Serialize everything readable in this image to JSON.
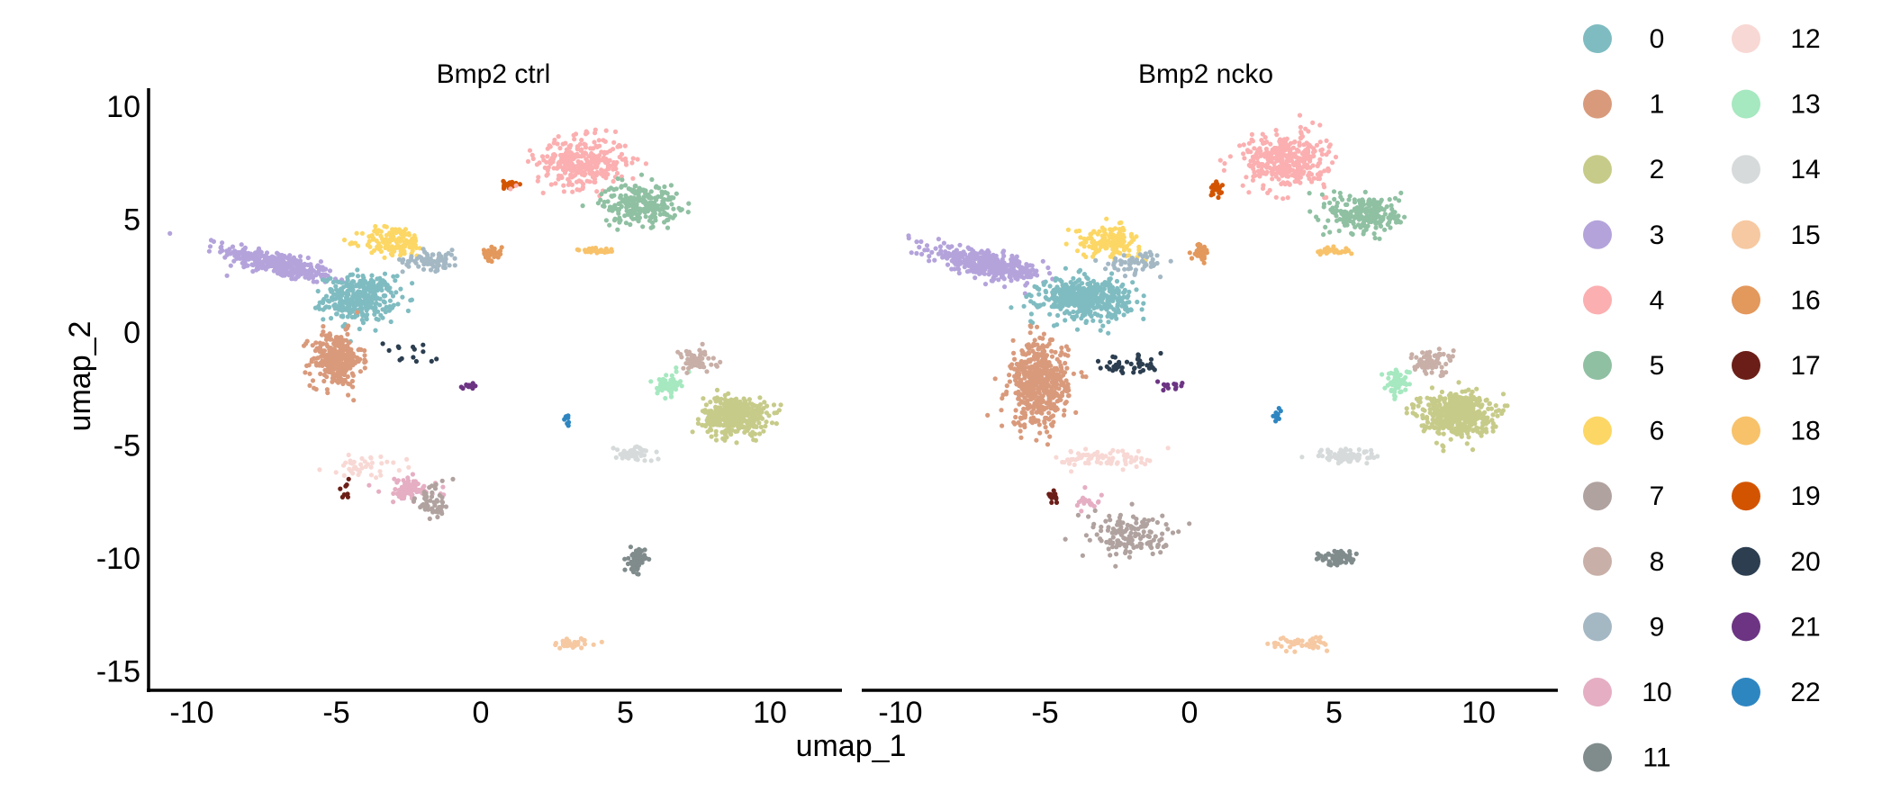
{
  "chart_data": {
    "type": "scatter",
    "subtype": "umap-facet",
    "xlabel": "umap_1",
    "ylabel": "umap_2",
    "xlim": [
      -11,
      12
    ],
    "ylim": [
      -15.5,
      11.5
    ],
    "xticks": [
      -10,
      -5,
      0,
      5,
      10
    ],
    "yticks": [
      10,
      5,
      0,
      -5,
      -10,
      -15
    ],
    "grid": false,
    "legend_position": "right",
    "legend_columns": 2,
    "legend": [
      {
        "label": "0",
        "color": "#7FBCC1"
      },
      {
        "label": "1",
        "color": "#D99A7C"
      },
      {
        "label": "2",
        "color": "#C7CB89"
      },
      {
        "label": "3",
        "color": "#B4A3DB"
      },
      {
        "label": "4",
        "color": "#FBAFB0"
      },
      {
        "label": "5",
        "color": "#8FC0A2"
      },
      {
        "label": "6",
        "color": "#FCD765"
      },
      {
        "label": "7",
        "color": "#B0A29F"
      },
      {
        "label": "8",
        "color": "#C8AFA7"
      },
      {
        "label": "9",
        "color": "#A4B8C4"
      },
      {
        "label": "10",
        "color": "#E5AEC3"
      },
      {
        "label": "11",
        "color": "#808B8C"
      },
      {
        "label": "12",
        "color": "#F8D8D4"
      },
      {
        "label": "13",
        "color": "#A6E8C0"
      },
      {
        "label": "14",
        "color": "#D6DADA"
      },
      {
        "label": "15",
        "color": "#F6C9A2"
      },
      {
        "label": "16",
        "color": "#E3985C"
      },
      {
        "label": "17",
        "color": "#6B1E17"
      },
      {
        "label": "18",
        "color": "#F8C26A"
      },
      {
        "label": "19",
        "color": "#D35400"
      },
      {
        "label": "20",
        "color": "#2C3E50"
      },
      {
        "label": "21",
        "color": "#6C3483"
      },
      {
        "label": "22",
        "color": "#2E86C1"
      }
    ],
    "panels": [
      {
        "title": "Bmp2  ctrl",
        "clusters": [
          {
            "id": "3",
            "cx": -7.0,
            "cy": 3.0,
            "sx": 1.8,
            "sy": 0.45,
            "n": 340,
            "rot": -0.32
          },
          {
            "id": "0",
            "cx": -4.2,
            "cy": 1.5,
            "sx": 1.1,
            "sy": 0.9,
            "n": 340
          },
          {
            "id": "1",
            "cx": -5.0,
            "cy": -1.2,
            "sx": 0.8,
            "sy": 1.1,
            "n": 290
          },
          {
            "id": "6",
            "cx": -3.0,
            "cy": 4.0,
            "sx": 1.0,
            "sy": 0.6,
            "n": 150
          },
          {
            "id": "9",
            "cx": -1.7,
            "cy": 3.2,
            "sx": 0.9,
            "sy": 0.4,
            "n": 80
          },
          {
            "id": "16",
            "cx": 0.4,
            "cy": 3.5,
            "sx": 0.3,
            "sy": 0.3,
            "n": 35
          },
          {
            "id": "19",
            "cx": 1.0,
            "cy": 6.5,
            "sx": 0.2,
            "sy": 0.2,
            "n": 22
          },
          {
            "id": "4",
            "cx": 3.5,
            "cy": 7.5,
            "sx": 1.4,
            "sy": 1.0,
            "n": 320
          },
          {
            "id": "5",
            "cx": 5.5,
            "cy": 5.7,
            "sx": 1.2,
            "sy": 0.8,
            "n": 240
          },
          {
            "id": "18",
            "cx": 4.0,
            "cy": 3.6,
            "sx": 0.6,
            "sy": 0.15,
            "n": 35
          },
          {
            "id": "2",
            "cx": 8.8,
            "cy": -3.7,
            "sx": 1.0,
            "sy": 0.75,
            "n": 420
          },
          {
            "id": "13",
            "cx": 6.5,
            "cy": -2.3,
            "sx": 0.35,
            "sy": 0.45,
            "n": 60
          },
          {
            "id": "8",
            "cx": 7.4,
            "cy": -1.3,
            "sx": 0.7,
            "sy": 0.5,
            "n": 60
          },
          {
            "id": "14",
            "cx": 5.3,
            "cy": -5.4,
            "sx": 0.6,
            "sy": 0.3,
            "n": 50
          },
          {
            "id": "11",
            "cx": 5.4,
            "cy": -10.1,
            "sx": 0.25,
            "sy": 0.45,
            "n": 70
          },
          {
            "id": "15",
            "cx": 3.2,
            "cy": -13.8,
            "sx": 0.8,
            "sy": 0.2,
            "n": 35
          },
          {
            "id": "22",
            "cx": 3.0,
            "cy": -3.8,
            "sx": 0.08,
            "sy": 0.3,
            "n": 10
          },
          {
            "id": "21",
            "cx": -0.5,
            "cy": -2.4,
            "sx": 0.4,
            "sy": 0.12,
            "n": 14
          },
          {
            "id": "20",
            "cx": -2.5,
            "cy": -1.0,
            "sx": 0.8,
            "sy": 0.5,
            "n": 14
          },
          {
            "id": "12",
            "cx": -4.0,
            "cy": -5.9,
            "sx": 1.3,
            "sy": 0.4,
            "n": 40
          },
          {
            "id": "10",
            "cx": -2.5,
            "cy": -7.0,
            "sx": 0.9,
            "sy": 0.5,
            "n": 80
          },
          {
            "id": "7",
            "cx": -1.6,
            "cy": -7.5,
            "sx": 0.6,
            "sy": 0.8,
            "n": 50
          },
          {
            "id": "17",
            "cx": -4.6,
            "cy": -7.0,
            "sx": 0.3,
            "sy": 0.35,
            "n": 8
          }
        ]
      },
      {
        "title": "Bmp2  ncko",
        "clusters": [
          {
            "id": "3",
            "cx": -7.0,
            "cy": 3.0,
            "sx": 1.8,
            "sy": 0.45,
            "n": 420,
            "rot": -0.3
          },
          {
            "id": "0",
            "cx": -3.6,
            "cy": 1.5,
            "sx": 1.4,
            "sy": 0.8,
            "n": 460
          },
          {
            "id": "1",
            "cx": -5.2,
            "cy": -2.3,
            "sx": 0.9,
            "sy": 1.7,
            "n": 520
          },
          {
            "id": "6",
            "cx": -2.8,
            "cy": 4.0,
            "sx": 1.0,
            "sy": 0.6,
            "n": 150
          },
          {
            "id": "9",
            "cx": -1.8,
            "cy": 3.1,
            "sx": 0.9,
            "sy": 0.4,
            "n": 60
          },
          {
            "id": "16",
            "cx": 0.4,
            "cy": 3.6,
            "sx": 0.3,
            "sy": 0.35,
            "n": 35
          },
          {
            "id": "19",
            "cx": 0.9,
            "cy": 6.3,
            "sx": 0.2,
            "sy": 0.25,
            "n": 22
          },
          {
            "id": "4",
            "cx": 3.3,
            "cy": 7.6,
            "sx": 1.3,
            "sy": 1.1,
            "n": 360
          },
          {
            "id": "5",
            "cx": 6.1,
            "cy": 5.2,
            "sx": 1.1,
            "sy": 0.8,
            "n": 240
          },
          {
            "id": "18",
            "cx": 5.0,
            "cy": 3.6,
            "sx": 0.6,
            "sy": 0.15,
            "n": 35
          },
          {
            "id": "2",
            "cx": 9.2,
            "cy": -3.6,
            "sx": 1.1,
            "sy": 0.85,
            "n": 480
          },
          {
            "id": "13",
            "cx": 7.2,
            "cy": -2.2,
            "sx": 0.4,
            "sy": 0.5,
            "n": 60
          },
          {
            "id": "8",
            "cx": 8.3,
            "cy": -1.3,
            "sx": 0.7,
            "sy": 0.5,
            "n": 70
          },
          {
            "id": "14",
            "cx": 5.5,
            "cy": -5.5,
            "sx": 1.0,
            "sy": 0.3,
            "n": 70
          },
          {
            "id": "11",
            "cx": 5.1,
            "cy": -10.0,
            "sx": 0.6,
            "sy": 0.3,
            "n": 60
          },
          {
            "id": "15",
            "cx": 3.8,
            "cy": -13.8,
            "sx": 0.9,
            "sy": 0.3,
            "n": 50
          },
          {
            "id": "22",
            "cx": 3.0,
            "cy": -3.7,
            "sx": 0.12,
            "sy": 0.25,
            "n": 10
          },
          {
            "id": "21",
            "cx": -0.7,
            "cy": -2.4,
            "sx": 0.5,
            "sy": 0.15,
            "n": 14
          },
          {
            "id": "20",
            "cx": -2.0,
            "cy": -1.4,
            "sx": 1.0,
            "sy": 0.5,
            "n": 40
          },
          {
            "id": "12",
            "cx": -2.8,
            "cy": -5.6,
            "sx": 1.6,
            "sy": 0.4,
            "n": 80
          },
          {
            "id": "7",
            "cx": -2.0,
            "cy": -9.0,
            "sx": 1.4,
            "sy": 0.9,
            "n": 140
          },
          {
            "id": "10",
            "cx": -3.5,
            "cy": -7.5,
            "sx": 0.5,
            "sy": 0.3,
            "n": 20
          },
          {
            "id": "17",
            "cx": -4.7,
            "cy": -7.3,
            "sx": 0.15,
            "sy": 0.2,
            "n": 16
          }
        ]
      }
    ]
  }
}
